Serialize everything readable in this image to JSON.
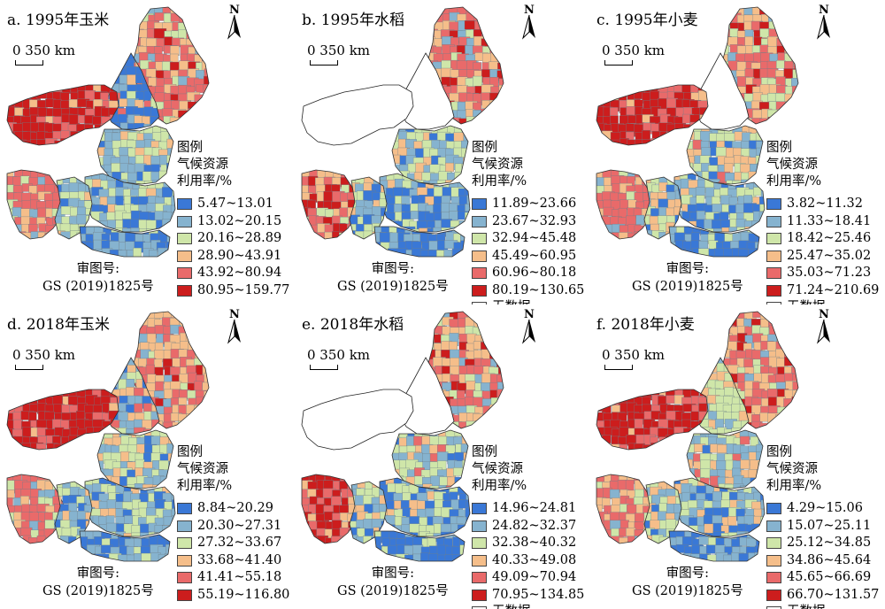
{
  "colors": {
    "c1": "#3a78d6",
    "c2": "#86b3cf",
    "c3": "#cfe6a9",
    "c4": "#f5be8a",
    "c5": "#e96a6a",
    "c6": "#cc1d1d",
    "nodata": "#ffffff"
  },
  "common": {
    "scale_text": "0  350 km",
    "north_label": "N",
    "legend_title_1": "图例",
    "legend_title_2": "气候资源",
    "legend_title_3": "利用率/%",
    "nodata_label": "无数据",
    "approval_1": "审图号:",
    "approval_2": "GS (2019)1825号"
  },
  "panels": [
    {
      "title": "a. 1995年玉米",
      "has_nodata": false,
      "classes": [
        "5.47~13.01",
        "13.02~20.15",
        "20.16~28.89",
        "28.90~43.91",
        "43.92~80.94",
        "80.95~159.77"
      ]
    },
    {
      "title": "b. 1995年水稻",
      "has_nodata": true,
      "classes": [
        "11.89~23.66",
        "23.67~32.93",
        "32.94~45.48",
        "45.49~60.95",
        "60.96~80.18",
        "80.19~130.65"
      ]
    },
    {
      "title": "c. 1995年小麦",
      "has_nodata": true,
      "classes": [
        "3.82~11.32",
        "11.33~18.41",
        "18.42~25.46",
        "25.47~35.02",
        "35.03~71.23",
        "71.24~210.69"
      ]
    },
    {
      "title": "d. 2018年玉米",
      "has_nodata": false,
      "classes": [
        "8.84~20.29",
        "20.30~27.31",
        "27.32~33.67",
        "33.68~41.40",
        "41.41~55.18",
        "55.19~116.80"
      ]
    },
    {
      "title": "e. 2018年水稻",
      "has_nodata": true,
      "classes": [
        "14.96~24.81",
        "24.82~32.37",
        "32.38~40.32",
        "40.33~49.08",
        "49.09~70.94",
        "70.95~134.85"
      ]
    },
    {
      "title": "f. 2018年小麦",
      "has_nodata": true,
      "classes": [
        "4.29~15.06",
        "15.07~25.11",
        "25.12~34.85",
        "34.86~45.64",
        "45.65~66.69",
        "66.70~131.57"
      ]
    }
  ]
}
